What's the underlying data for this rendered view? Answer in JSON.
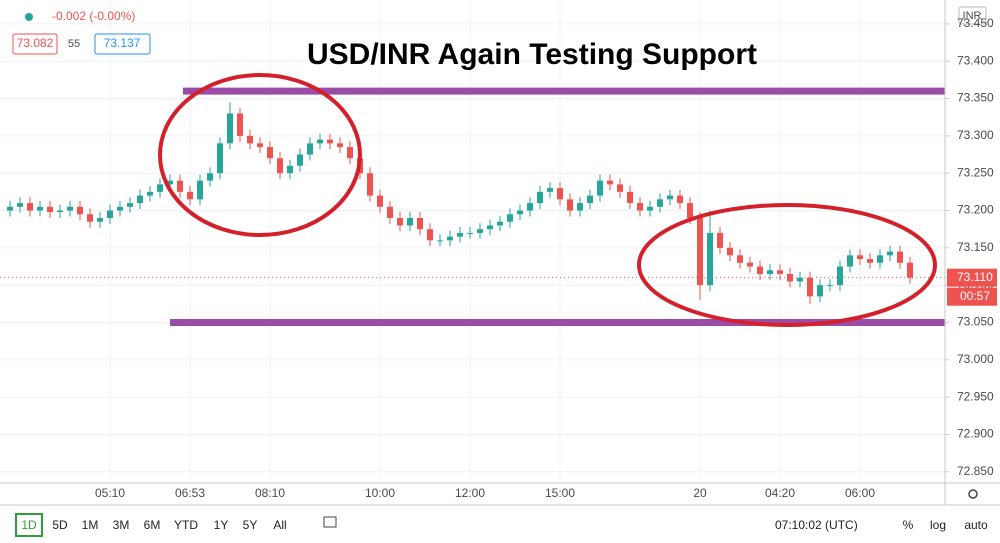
{
  "chart_data": {
    "type": "candlestick",
    "title": "USD/INR Again Testing Support",
    "header": {
      "change": "-0.002 (-0.00%)",
      "bid": "73.082",
      "spread": "55",
      "ask": "73.137"
    },
    "currency": "INR",
    "up_color": "#26a69a",
    "down_color": "#ef5350",
    "grid": true,
    "categories": [
      null,
      null,
      null,
      null,
      null,
      null,
      null,
      null,
      null,
      null,
      "05:10",
      null,
      null,
      null,
      null,
      null,
      null,
      null,
      "06:53",
      null,
      null,
      null,
      null,
      null,
      null,
      null,
      "08:10",
      null,
      null,
      null,
      null,
      null,
      null,
      null,
      null,
      null,
      null,
      "10:00",
      null,
      null,
      null,
      null,
      null,
      null,
      null,
      null,
      "12:00",
      null,
      null,
      null,
      null,
      null,
      null,
      null,
      null,
      "15:00",
      null,
      null,
      null,
      null,
      null,
      null,
      null,
      null,
      null,
      null,
      null,
      null,
      null,
      "20",
      null,
      null,
      null,
      null,
      null,
      null,
      null,
      "04:20",
      null,
      null,
      null,
      null,
      null,
      null,
      null,
      "06:00",
      null,
      null,
      null,
      null,
      null
    ],
    "open": [
      73.2,
      73.205,
      73.21,
      73.2,
      73.205,
      73.198,
      73.2,
      73.205,
      73.195,
      73.185,
      73.19,
      73.2,
      73.205,
      73.21,
      73.22,
      73.225,
      73.235,
      73.24,
      73.225,
      73.215,
      73.24,
      73.25,
      73.29,
      73.33,
      73.3,
      73.29,
      73.285,
      73.27,
      73.25,
      73.26,
      73.275,
      73.29,
      73.295,
      73.29,
      73.285,
      73.27,
      73.25,
      73.22,
      73.205,
      73.19,
      73.18,
      73.19,
      73.175,
      73.16,
      73.16,
      73.165,
      73.17,
      73.17,
      73.175,
      73.18,
      73.185,
      73.195,
      73.2,
      73.21,
      73.225,
      73.23,
      73.215,
      73.2,
      73.21,
      73.22,
      73.24,
      73.235,
      73.225,
      73.21,
      73.2,
      73.205,
      73.215,
      73.22,
      73.21,
      73.19,
      73.1,
      73.17,
      73.15,
      73.14,
      73.13,
      73.125,
      73.115,
      73.12,
      73.115,
      73.105,
      73.11,
      73.085,
      73.1,
      73.1,
      73.125,
      73.14,
      73.135,
      73.13,
      73.14,
      73.145,
      73.13
    ],
    "high": [
      73.213,
      73.218,
      73.218,
      73.213,
      73.213,
      73.208,
      73.213,
      73.213,
      73.203,
      73.198,
      73.208,
      73.213,
      73.218,
      73.228,
      73.233,
      73.243,
      73.248,
      73.248,
      73.233,
      73.248,
      73.258,
      73.298,
      73.345,
      73.338,
      73.308,
      73.298,
      73.293,
      73.278,
      73.268,
      73.283,
      73.298,
      73.303,
      73.303,
      73.298,
      73.293,
      73.278,
      73.258,
      73.228,
      73.213,
      73.198,
      73.198,
      73.198,
      73.183,
      73.168,
      73.173,
      73.178,
      73.178,
      73.183,
      73.188,
      73.193,
      73.203,
      73.208,
      73.218,
      73.233,
      73.238,
      73.238,
      73.223,
      73.218,
      73.228,
      73.248,
      73.248,
      73.243,
      73.233,
      73.218,
      73.213,
      73.223,
      73.228,
      73.228,
      73.218,
      73.198,
      73.2,
      73.178,
      73.158,
      73.148,
      73.138,
      73.133,
      73.128,
      73.128,
      73.123,
      73.118,
      73.118,
      73.108,
      73.108,
      73.133,
      73.148,
      73.148,
      73.143,
      73.148,
      73.153,
      73.153,
      73.138
    ],
    "low": [
      73.192,
      73.197,
      73.192,
      73.192,
      73.19,
      73.19,
      73.192,
      73.187,
      73.177,
      73.177,
      73.182,
      73.192,
      73.197,
      73.202,
      73.212,
      73.217,
      73.227,
      73.217,
      73.207,
      73.207,
      73.232,
      73.242,
      73.282,
      73.292,
      73.282,
      73.277,
      73.262,
      73.242,
      73.242,
      73.252,
      73.267,
      73.282,
      73.282,
      73.277,
      73.262,
      73.242,
      73.212,
      73.197,
      73.182,
      73.172,
      73.172,
      73.167,
      73.152,
      73.152,
      73.152,
      73.157,
      73.162,
      73.162,
      73.167,
      73.172,
      73.177,
      73.187,
      73.192,
      73.202,
      73.217,
      73.207,
      73.192,
      73.192,
      73.202,
      73.212,
      73.227,
      73.217,
      73.202,
      73.192,
      73.192,
      73.197,
      73.207,
      73.202,
      73.182,
      73.08,
      73.092,
      73.142,
      73.132,
      73.122,
      73.117,
      73.107,
      73.107,
      73.107,
      73.097,
      73.097,
      73.075,
      73.077,
      73.092,
      73.092,
      73.117,
      73.127,
      73.122,
      73.122,
      73.132,
      73.122,
      73.102
    ],
    "close": [
      73.205,
      73.21,
      73.2,
      73.205,
      73.198,
      73.2,
      73.205,
      73.195,
      73.185,
      73.19,
      73.2,
      73.205,
      73.21,
      73.22,
      73.225,
      73.235,
      73.24,
      73.225,
      73.215,
      73.24,
      73.25,
      73.29,
      73.33,
      73.3,
      73.29,
      73.285,
      73.27,
      73.25,
      73.26,
      73.275,
      73.29,
      73.295,
      73.29,
      73.285,
      73.27,
      73.25,
      73.22,
      73.205,
      73.19,
      73.18,
      73.19,
      73.175,
      73.16,
      73.16,
      73.165,
      73.17,
      73.17,
      73.175,
      73.18,
      73.185,
      73.195,
      73.2,
      73.21,
      73.225,
      73.23,
      73.215,
      73.2,
      73.21,
      73.22,
      73.24,
      73.235,
      73.225,
      73.21,
      73.2,
      73.205,
      73.215,
      73.22,
      73.21,
      73.19,
      73.1,
      73.17,
      73.15,
      73.14,
      73.13,
      73.125,
      73.115,
      73.12,
      73.115,
      73.105,
      73.11,
      73.085,
      73.1,
      73.1,
      73.125,
      73.14,
      73.135,
      73.13,
      73.14,
      73.145,
      73.13,
      73.11
    ],
    "ylim": [
      72.835,
      73.482
    ],
    "yticks": [
      {
        "value": 72.85,
        "label": "72.850"
      },
      {
        "value": 72.9,
        "label": "72.900"
      },
      {
        "value": 72.95,
        "label": "72.950"
      },
      {
        "value": 73.0,
        "label": "73.000"
      },
      {
        "value": 73.05,
        "label": "73.050"
      },
      {
        "value": 73.1,
        "label": "73.100"
      },
      {
        "value": 73.15,
        "label": "73.150"
      },
      {
        "value": 73.2,
        "label": "73.200"
      },
      {
        "value": 73.25,
        "label": "73.250"
      },
      {
        "value": 73.3,
        "label": "73.300"
      },
      {
        "value": 73.35,
        "label": "73.350"
      },
      {
        "value": 73.4,
        "label": "73.400"
      },
      {
        "value": 73.45,
        "label": "73.450"
      }
    ],
    "levels": [
      {
        "value": 73.36,
        "color": "#9b4ba8"
      },
      {
        "value": 73.05,
        "color": "#9b4ba8"
      }
    ],
    "last_price": {
      "value": 73.11,
      "label": "73.110"
    },
    "countdown": "00:57",
    "ranges": [
      "1D",
      "5D",
      "1M",
      "3M",
      "6M",
      "YTD",
      "1Y",
      "5Y",
      "All"
    ],
    "clock": "07:10:02 (UTC)",
    "scale_options": [
      "%",
      "log",
      "auto"
    ]
  }
}
